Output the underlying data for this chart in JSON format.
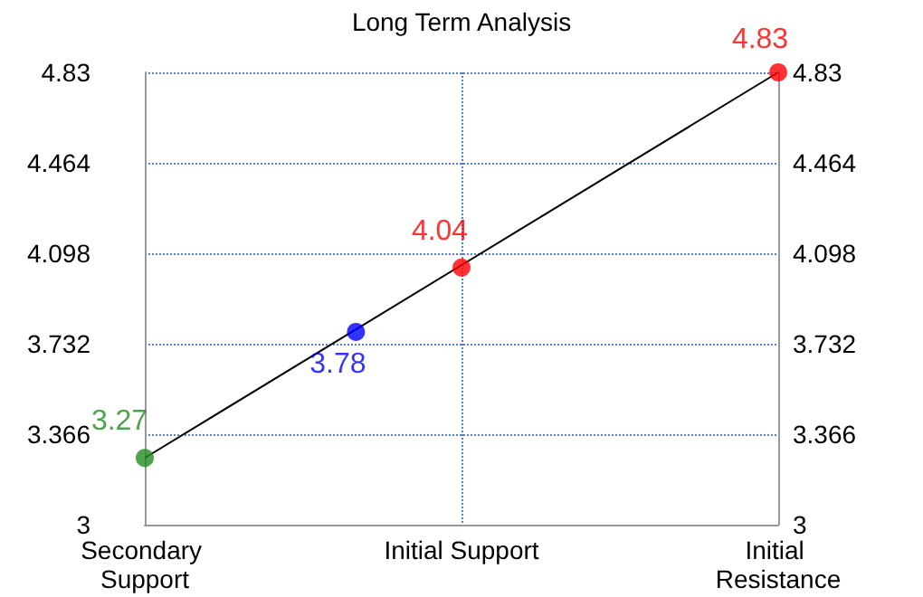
{
  "chart_data": {
    "type": "scatter",
    "title": "Long Term Analysis",
    "categories": [
      "Secondary Support",
      null,
      null,
      "Initial Support",
      null,
      null,
      "Initial Resistance"
    ],
    "ylim": [
      3,
      4.83
    ],
    "yticks": [
      3,
      3.366,
      3.732,
      4.098,
      4.464,
      4.83
    ],
    "y2lim": [
      3,
      4.83
    ],
    "y2ticks": [
      3,
      3.366,
      3.732,
      4.098,
      4.464,
      4.83
    ],
    "grid": true,
    "series": [
      {
        "type": "line",
        "values": [
          3.27,
          null,
          null,
          null,
          null,
          null,
          4.83
        ],
        "color": "#000000",
        "marker": "none"
      },
      {
        "values": [
          3.27,
          null,
          3.78,
          4.04,
          null,
          null,
          4.83
        ],
        "colors": [
          "#228b22",
          null,
          "#0000ff",
          "#ff0000",
          null,
          null,
          "#ff0000"
        ],
        "value_labels": [
          "3.27",
          null,
          "3.78",
          "4.04",
          null,
          null,
          "4.83"
        ],
        "marker": "circle"
      }
    ]
  }
}
